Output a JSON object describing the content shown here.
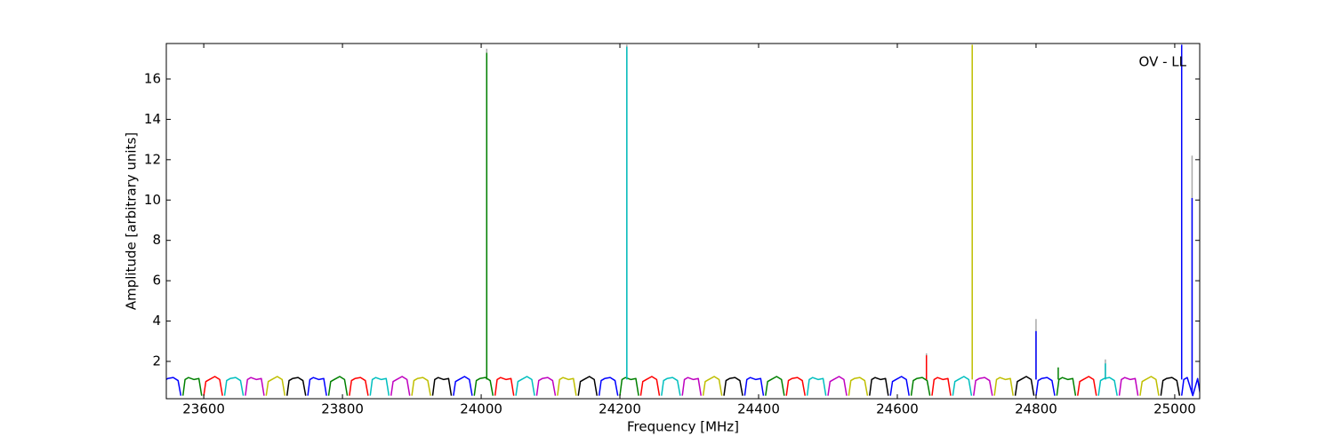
{
  "chart_data": {
    "type": "line",
    "annotation": "OV - LL",
    "x_label": "Frequency [MHz]",
    "y_label": "Amplitude [arbitrary units]",
    "xlim": [
      23546,
      25036
    ],
    "ylim": [
      0.15,
      17.76
    ],
    "xticks": [
      23600,
      23800,
      24000,
      24200,
      24400,
      24600,
      24800,
      25000
    ],
    "yticks": [
      2,
      4,
      6,
      8,
      10,
      12,
      14,
      16
    ],
    "grid": false,
    "series": [
      {
        "color": "#aaaaaa",
        "x": [
          24008,
          24008,
          null,
          24210,
          24210,
          null,
          24642,
          24642,
          null,
          24800,
          24800,
          null,
          24900,
          24900,
          null,
          25025,
          25025
        ],
        "values": [
          1.1,
          17.5,
          null,
          1.1,
          17.7,
          null,
          1.1,
          2.4,
          null,
          1.1,
          4.1,
          null,
          1.1,
          2.1,
          null,
          0.4,
          12.2
        ]
      },
      {
        "color": "#0000ff",
        "x": [
          23540,
          23543,
          23548,
          23556,
          23563,
          23567,
          null,
          23750,
          23753,
          23758,
          23766,
          23773,
          23777,
          null,
          23960,
          23963,
          23968,
          23976,
          23983,
          23987,
          null,
          24170,
          24173,
          24178,
          24186,
          24193,
          24197,
          null,
          24380,
          24383,
          24388,
          24396,
          24403,
          24407,
          null,
          24590,
          24593,
          24598,
          24606,
          24613,
          24617,
          null,
          24800,
          24803,
          24808,
          24816,
          24823,
          24827,
          null,
          25010,
          25013,
          25018,
          25026,
          25033,
          25037,
          null,
          24800,
          24800,
          null,
          25010,
          25010,
          null,
          25025,
          25025
        ],
        "values": [
          0.3,
          1.05,
          1.15,
          1.2,
          1.05,
          0.3,
          null,
          0.3,
          1.1,
          1.2,
          1.1,
          1.15,
          0.3,
          null,
          0.3,
          1.0,
          1.1,
          1.25,
          1.1,
          0.3,
          null,
          0.3,
          1.05,
          1.15,
          1.2,
          1.05,
          0.3,
          null,
          0.3,
          1.1,
          1.2,
          1.1,
          1.15,
          0.3,
          null,
          0.3,
          1.0,
          1.1,
          1.25,
          1.1,
          0.3,
          null,
          0.3,
          1.05,
          1.15,
          1.2,
          1.05,
          0.3,
          null,
          0.3,
          1.1,
          1.2,
          0.3,
          1.15,
          0.3,
          null,
          1.1,
          3.5,
          null,
          1.1,
          17.7,
          null,
          0.4,
          10.1
        ]
      },
      {
        "color": "#008000",
        "x": [
          23570,
          23573,
          23578,
          23586,
          23593,
          23597,
          null,
          23780,
          23783,
          23788,
          23796,
          23803,
          23807,
          null,
          23990,
          23993,
          23998,
          24006,
          24013,
          24017,
          null,
          24200,
          24203,
          24208,
          24216,
          24223,
          24227,
          null,
          24410,
          24413,
          24418,
          24426,
          24433,
          24437,
          null,
          24620,
          24623,
          24628,
          24636,
          24643,
          24647,
          null,
          24830,
          24833,
          24838,
          24846,
          24853,
          24857,
          null,
          24008,
          24008,
          null,
          24832,
          24832
        ],
        "values": [
          0.3,
          1.1,
          1.2,
          1.1,
          1.15,
          0.3,
          null,
          0.3,
          1.0,
          1.1,
          1.25,
          1.1,
          0.3,
          null,
          0.3,
          1.05,
          1.15,
          1.2,
          1.05,
          0.3,
          null,
          0.3,
          1.1,
          1.2,
          1.1,
          1.15,
          0.3,
          null,
          0.3,
          1.0,
          1.1,
          1.25,
          1.1,
          0.3,
          null,
          0.3,
          1.05,
          1.15,
          1.2,
          1.05,
          0.3,
          null,
          0.3,
          1.1,
          1.2,
          1.1,
          1.15,
          0.3,
          null,
          1.1,
          17.3,
          null,
          1.1,
          1.7
        ]
      },
      {
        "color": "#ff0000",
        "x": [
          23600,
          23603,
          23608,
          23616,
          23623,
          23627,
          null,
          23810,
          23813,
          23818,
          23826,
          23833,
          23837,
          null,
          24020,
          24023,
          24028,
          24036,
          24043,
          24047,
          null,
          24230,
          24233,
          24238,
          24246,
          24253,
          24257,
          null,
          24440,
          24443,
          24448,
          24456,
          24463,
          24467,
          null,
          24650,
          24653,
          24658,
          24666,
          24673,
          24677,
          null,
          24860,
          24863,
          24868,
          24876,
          24883,
          24887,
          null,
          24642,
          24642
        ],
        "values": [
          0.3,
          1.0,
          1.1,
          1.25,
          1.1,
          0.3,
          null,
          0.3,
          1.05,
          1.15,
          1.2,
          1.05,
          0.3,
          null,
          0.3,
          1.1,
          1.2,
          1.1,
          1.15,
          0.3,
          null,
          0.3,
          1.0,
          1.1,
          1.25,
          1.1,
          0.3,
          null,
          0.3,
          1.05,
          1.15,
          1.2,
          1.05,
          0.3,
          null,
          0.3,
          1.1,
          1.2,
          1.1,
          1.15,
          0.3,
          null,
          0.3,
          1.0,
          1.1,
          1.25,
          1.1,
          0.3,
          null,
          1.1,
          2.3
        ]
      },
      {
        "color": "#00bfbf",
        "x": [
          23630,
          23633,
          23638,
          23646,
          23653,
          23657,
          null,
          23840,
          23843,
          23848,
          23856,
          23863,
          23867,
          null,
          24050,
          24053,
          24058,
          24066,
          24073,
          24077,
          null,
          24260,
          24263,
          24268,
          24276,
          24283,
          24287,
          null,
          24470,
          24473,
          24478,
          24486,
          24493,
          24497,
          null,
          24680,
          24683,
          24688,
          24696,
          24703,
          24707,
          null,
          24890,
          24893,
          24898,
          24906,
          24913,
          24917,
          null,
          24210,
          24210,
          null,
          24900,
          24900
        ],
        "values": [
          0.3,
          1.05,
          1.15,
          1.2,
          1.05,
          0.3,
          null,
          0.3,
          1.1,
          1.2,
          1.1,
          1.15,
          0.3,
          null,
          0.3,
          1.0,
          1.1,
          1.25,
          1.1,
          0.3,
          null,
          0.3,
          1.05,
          1.15,
          1.2,
          1.05,
          0.3,
          null,
          0.3,
          1.1,
          1.2,
          1.1,
          1.15,
          0.3,
          null,
          0.3,
          1.0,
          1.1,
          1.25,
          1.1,
          0.3,
          null,
          0.3,
          1.05,
          1.15,
          1.2,
          1.05,
          0.3,
          null,
          1.1,
          17.6,
          null,
          1.1,
          1.9
        ]
      },
      {
        "color": "#bf00bf",
        "x": [
          23660,
          23663,
          23668,
          23676,
          23683,
          23687,
          null,
          23870,
          23873,
          23878,
          23886,
          23893,
          23897,
          null,
          24080,
          24083,
          24088,
          24096,
          24103,
          24107,
          null,
          24290,
          24293,
          24298,
          24306,
          24313,
          24317,
          null,
          24500,
          24503,
          24508,
          24516,
          24523,
          24527,
          null,
          24710,
          24713,
          24718,
          24726,
          24733,
          24737,
          null,
          24920,
          24923,
          24928,
          24936,
          24943,
          24947
        ],
        "values": [
          0.3,
          1.1,
          1.2,
          1.1,
          1.15,
          0.3,
          null,
          0.3,
          1.0,
          1.1,
          1.25,
          1.1,
          0.3,
          null,
          0.3,
          1.05,
          1.15,
          1.2,
          1.05,
          0.3,
          null,
          0.3,
          1.1,
          1.2,
          1.1,
          1.15,
          0.3,
          null,
          0.3,
          1.0,
          1.1,
          1.25,
          1.1,
          0.3,
          null,
          0.3,
          1.05,
          1.15,
          1.2,
          1.05,
          0.3,
          null,
          0.3,
          1.1,
          1.2,
          1.1,
          1.15,
          0.3
        ]
      },
      {
        "color": "#bfbf00",
        "x": [
          23690,
          23693,
          23698,
          23706,
          23713,
          23717,
          null,
          23900,
          23903,
          23908,
          23916,
          23923,
          23927,
          null,
          24110,
          24113,
          24118,
          24126,
          24133,
          24137,
          null,
          24320,
          24323,
          24328,
          24336,
          24343,
          24347,
          null,
          24530,
          24533,
          24538,
          24546,
          24553,
          24557,
          null,
          24740,
          24743,
          24748,
          24756,
          24763,
          24767,
          null,
          24950,
          24953,
          24958,
          24966,
          24973,
          24977,
          null,
          24708,
          24708
        ],
        "values": [
          0.3,
          1.0,
          1.1,
          1.25,
          1.1,
          0.3,
          null,
          0.3,
          1.05,
          1.15,
          1.2,
          1.05,
          0.3,
          null,
          0.3,
          1.1,
          1.2,
          1.1,
          1.15,
          0.3,
          null,
          0.3,
          1.0,
          1.1,
          1.25,
          1.1,
          0.3,
          null,
          0.3,
          1.05,
          1.15,
          1.2,
          1.05,
          0.3,
          null,
          0.3,
          1.1,
          1.2,
          1.1,
          1.15,
          0.3,
          null,
          0.3,
          1.0,
          1.1,
          1.25,
          1.1,
          0.3,
          null,
          1.1,
          17.7
        ]
      },
      {
        "color": "#000000",
        "x": [
          23720,
          23723,
          23728,
          23736,
          23743,
          23747,
          null,
          23930,
          23933,
          23938,
          23946,
          23953,
          23957,
          null,
          24140,
          24143,
          24148,
          24156,
          24163,
          24167,
          null,
          24350,
          24353,
          24358,
          24366,
          24373,
          24377,
          null,
          24560,
          24563,
          24568,
          24576,
          24583,
          24587,
          null,
          24770,
          24773,
          24778,
          24786,
          24793,
          24797,
          null,
          24980,
          24983,
          24988,
          24996,
          25003,
          25007
        ],
        "values": [
          0.3,
          1.05,
          1.15,
          1.2,
          1.05,
          0.3,
          null,
          0.3,
          1.1,
          1.2,
          1.1,
          1.15,
          0.3,
          null,
          0.3,
          1.0,
          1.1,
          1.25,
          1.1,
          0.3,
          null,
          0.3,
          1.05,
          1.15,
          1.2,
          1.05,
          0.3,
          null,
          0.3,
          1.1,
          1.2,
          1.1,
          1.15,
          0.3,
          null,
          0.3,
          1.0,
          1.1,
          1.25,
          1.1,
          0.3,
          null,
          0.3,
          1.05,
          1.15,
          1.2,
          1.05,
          0.3
        ]
      }
    ]
  }
}
